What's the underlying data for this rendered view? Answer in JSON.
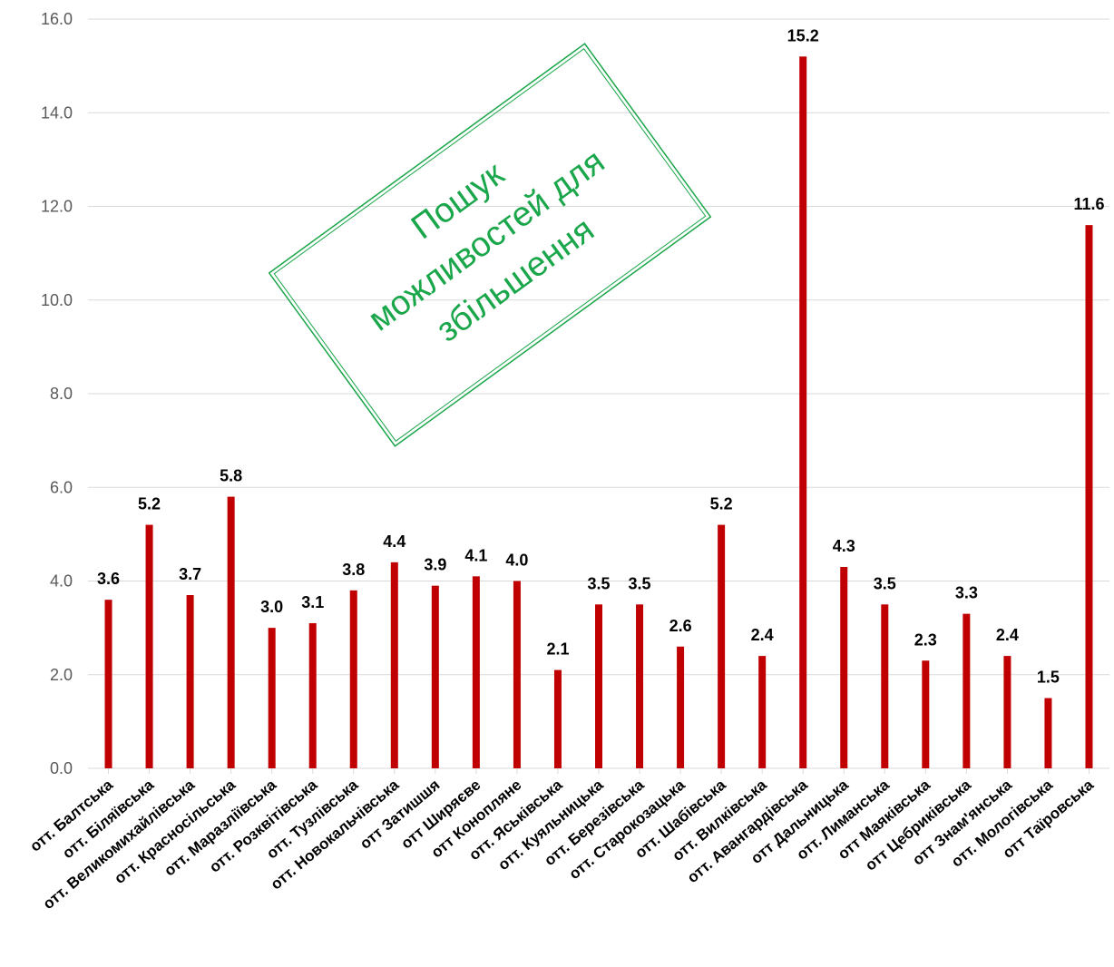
{
  "chart_data": {
    "type": "bar",
    "title": "",
    "xlabel": "",
    "ylabel": "",
    "ylim": [
      0,
      16
    ],
    "yticks": [
      "0.0",
      "2.0",
      "4.0",
      "6.0",
      "8.0",
      "10.0",
      "12.0",
      "14.0",
      "16.0"
    ],
    "grid": "horizontal",
    "bar_color": "#c00000",
    "categories": [
      "отт. Балтська",
      "отт. Біляївська",
      "отт. Великомихайлівська",
      "отт. Красносільська",
      "отт. Маразліївська",
      "отт. Розквітівська",
      "отт. Тузлівська",
      "отт. Новокальчівська",
      "отт Затишшя",
      "отт Ширяєве",
      "отт Конопляне",
      "отт. Яськівська",
      "отт. Куяльницька",
      "отт. Березівська",
      "отт. Старокозацька",
      "отт. Шабівська",
      "отт. Вилківська",
      "отт. Авангардівська",
      "отт Дальницька",
      "отт. Лиманська",
      "отт Маяківська",
      "отт Цебриківська",
      "отт Знам'янська",
      "отт. Мологівська",
      "отт Таїровська"
    ],
    "values": [
      3.6,
      5.2,
      3.7,
      5.8,
      3.0,
      3.1,
      3.8,
      4.4,
      3.9,
      4.1,
      4.0,
      2.1,
      3.5,
      3.5,
      2.6,
      5.2,
      2.4,
      15.2,
      4.3,
      3.5,
      2.3,
      3.3,
      2.4,
      1.5,
      11.6
    ],
    "data_labels": [
      "3.6",
      "5.2",
      "3.7",
      "5.8",
      "3.0",
      "3.1",
      "3.8",
      "4.4",
      "3.9",
      "4.1",
      "4.0",
      "2.1",
      "3.5",
      "3.5",
      "2.6",
      "5.2",
      "2.4",
      "15.2",
      "4.3",
      "3.5",
      "2.3",
      "3.3",
      "2.4",
      "1.5",
      "11.6"
    ],
    "annotation": {
      "lines": [
        "Пошук",
        "можливостей для",
        "збільшення"
      ],
      "color": "#1aa64a"
    }
  }
}
